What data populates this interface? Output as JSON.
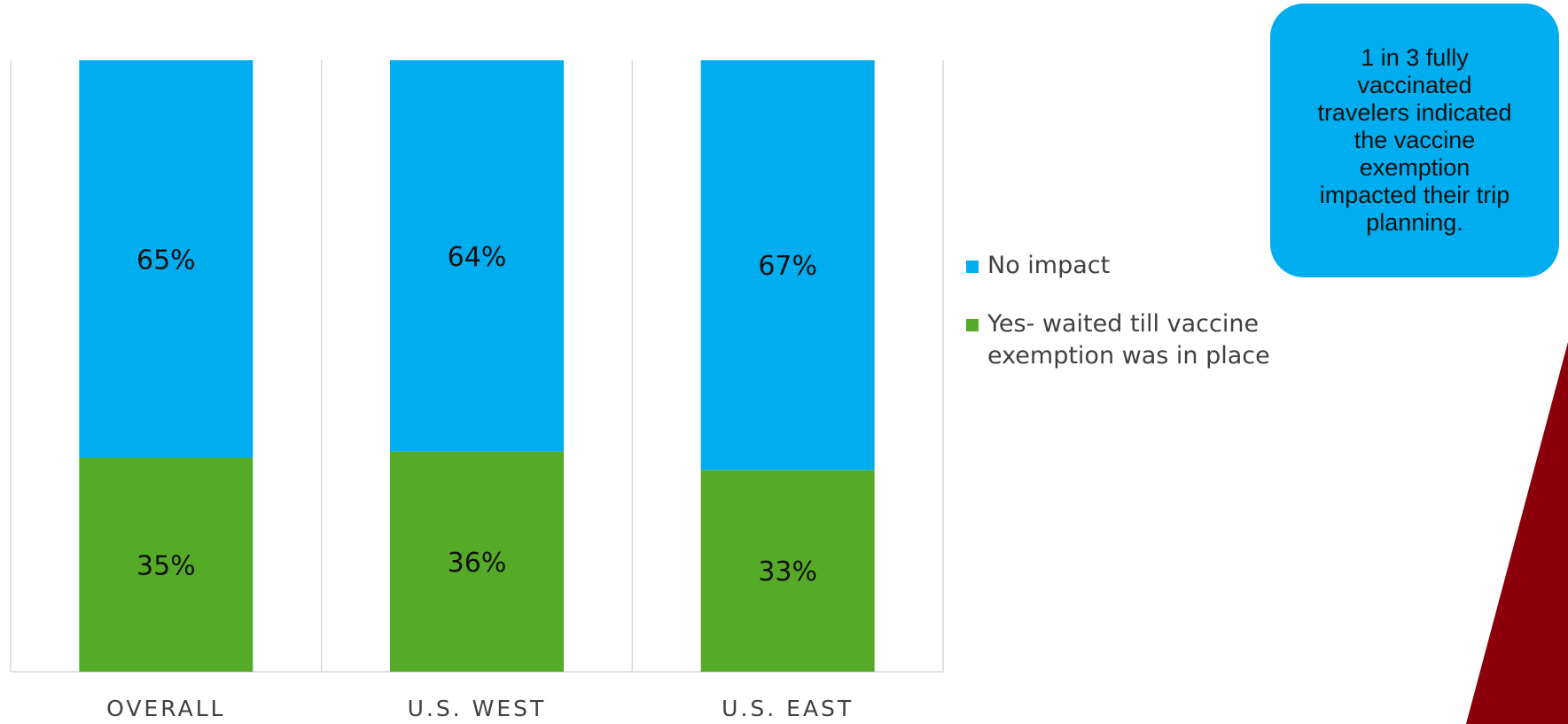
{
  "chart_data": {
    "type": "bar",
    "stacked": true,
    "categories": [
      "OVERALL",
      "U.S. WEST",
      "U.S. EAST"
    ],
    "series": [
      {
        "name": "Yes- waited till vaccine exemption was in place",
        "values": [
          35,
          36,
          33
        ],
        "labels": [
          "35%",
          "36%",
          "33%"
        ],
        "color": "#55aa27"
      },
      {
        "name": "No impact",
        "values": [
          65,
          64,
          67
        ],
        "labels": [
          "65%",
          "64%",
          "67%"
        ],
        "color": "#00adef"
      }
    ],
    "ylim": [
      0,
      100
    ],
    "grid": false,
    "legend_position": "right"
  },
  "legend": {
    "items": [
      {
        "label": "No impact",
        "color": "#00adef"
      },
      {
        "label": "Yes- waited till vaccine exemption was in place",
        "color": "#55aa27"
      }
    ]
  },
  "callout": {
    "text": "1 in 3 fully vaccinated travelers indicated the vaccine exemption impacted their trip planning.",
    "color": "#00adef"
  },
  "accent_color": "#8b000b"
}
